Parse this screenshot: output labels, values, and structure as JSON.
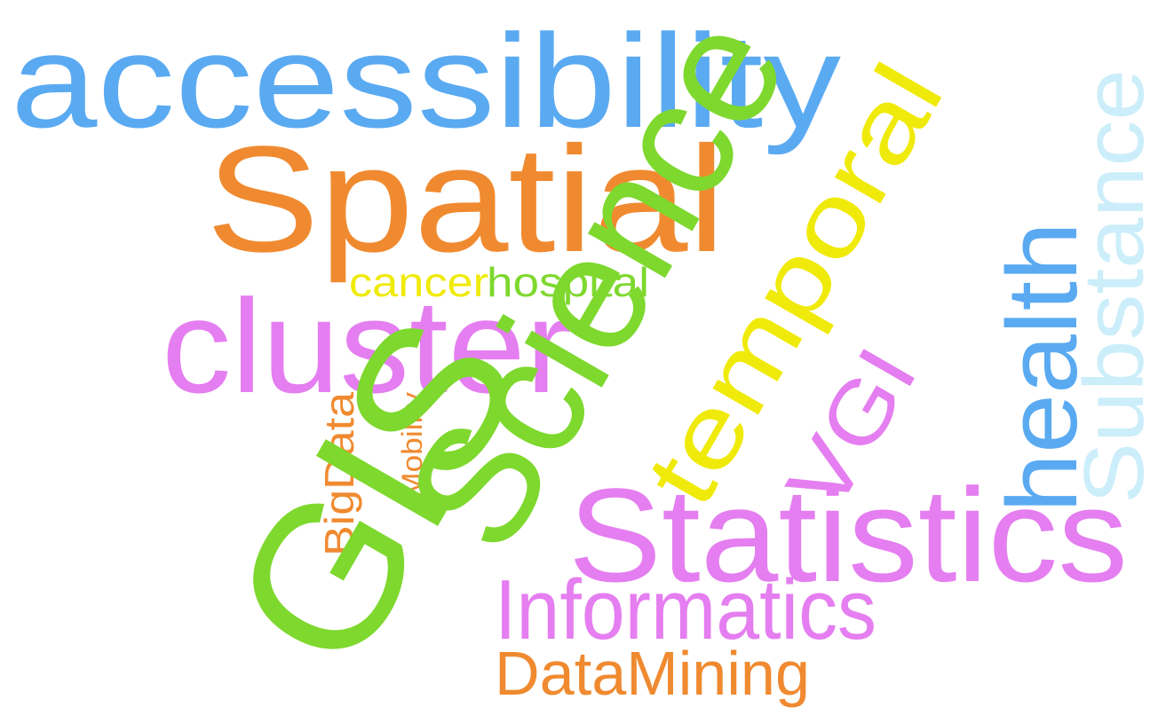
{
  "colors": {
    "blue": "#5aaaf2",
    "orange": "#f08a30",
    "green": "#7ed82e",
    "pink": "#e57ef0",
    "yellow": "#f0ea0a",
    "light_blue": "#cbeefa"
  },
  "words": [
    {
      "id": "accessibility",
      "text": "accessibility",
      "color": "blue"
    },
    {
      "id": "spatial",
      "text": "Spatial",
      "color": "orange"
    },
    {
      "id": "science",
      "text": "Science",
      "color": "green"
    },
    {
      "id": "temporal",
      "text": "temporal",
      "color": "yellow"
    },
    {
      "id": "substance",
      "text": "Substance",
      "color": "light_blue"
    },
    {
      "id": "health",
      "text": "health",
      "color": "blue"
    },
    {
      "id": "cluster",
      "text": "cluster",
      "color": "pink"
    },
    {
      "id": "cancer",
      "text": "cancer",
      "color": "yellow"
    },
    {
      "id": "hospital",
      "text": "hospital",
      "color": "green"
    },
    {
      "id": "gis",
      "text": "GIS",
      "color": "green"
    },
    {
      "id": "vgi",
      "text": "VGI",
      "color": "pink"
    },
    {
      "id": "statistics",
      "text": "Statistics",
      "color": "pink"
    },
    {
      "id": "bigdata",
      "text": "BigData",
      "color": "orange"
    },
    {
      "id": "mobility",
      "text": "Mobility",
      "color": "orange"
    },
    {
      "id": "informatics",
      "text": "Informatics",
      "color": "pink"
    },
    {
      "id": "datamining",
      "text": "DataMining",
      "color": "orange"
    }
  ]
}
